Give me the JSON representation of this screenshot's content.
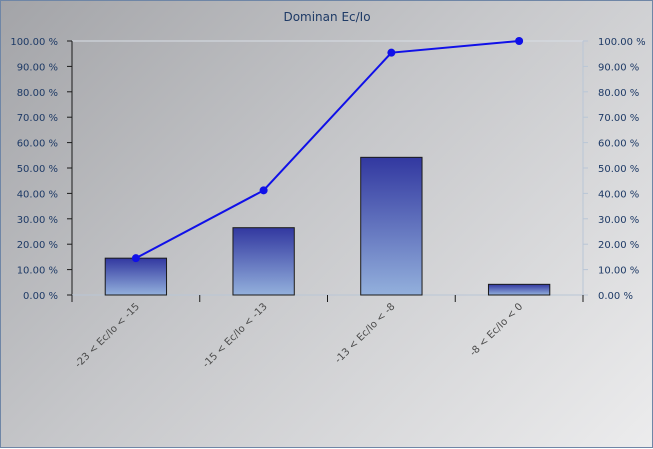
{
  "chart_data": {
    "type": "bar",
    "title": "Dominan Ec/Io",
    "categories": [
      "-23 < Ec/Io < -15",
      "-15 < Ec/Io < -13",
      "-13 < Ec/Io < -8",
      "-8 < Ec/Io < 0"
    ],
    "series": [
      {
        "type": "bar",
        "values": [
          14.5,
          26.5,
          54.2,
          4.2
        ]
      },
      {
        "type": "line",
        "values": [
          14.5,
          41.2,
          95.4,
          100.0
        ]
      }
    ],
    "ylim": [
      0,
      100
    ],
    "y_ticks": [
      "0.00 %",
      "10.00 %",
      "20.00 %",
      "30.00 %",
      "40.00 %",
      "50.00 %",
      "60.00 %",
      "70.00 %",
      "80.00 %",
      "90.00 %",
      "100.00 %"
    ],
    "y2_ticks": [
      "0.00 %",
      "10.00 %",
      "20.00 %",
      "30.00 %",
      "40.00 %",
      "50.00 %",
      "60.00 %",
      "70.00 %",
      "80.00 %",
      "90.00 %",
      "100.00 %"
    ],
    "grid": false,
    "legend": "none",
    "colors": {
      "bar_top": "#3238a0",
      "bar_bottom": "#93b0dc",
      "bar_stroke": "#1a1a1a",
      "line": "#1010e8",
      "axis": "#b9c6d6",
      "tick_text": "#1e3a66"
    }
  }
}
